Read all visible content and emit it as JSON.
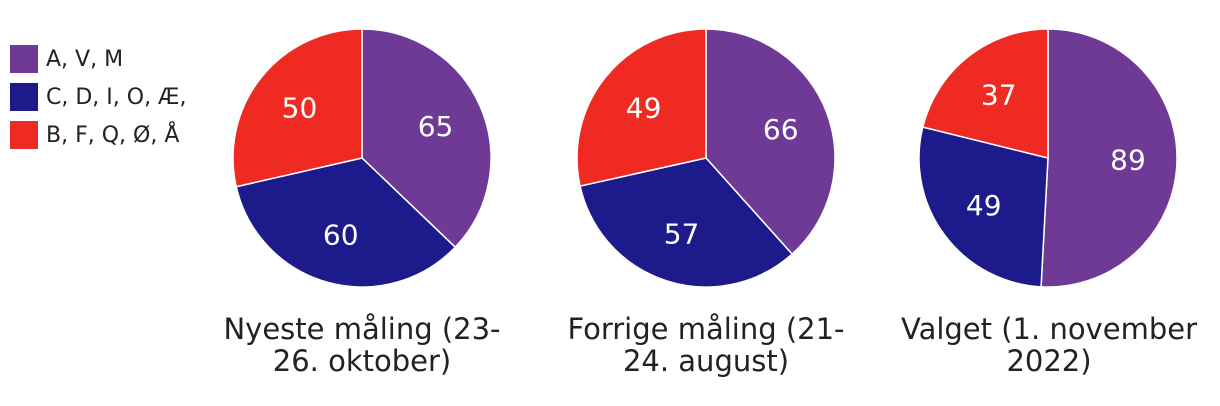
{
  "legend": [
    {
      "label": "A, V, M",
      "color": "#6f3a96"
    },
    {
      "label": "C, D, I, O, Æ,",
      "color": "#1d1a8c"
    },
    {
      "label": "B, F, Q, Ø, Å",
      "color": "#ef2a22"
    }
  ],
  "chart_data": [
    {
      "type": "pie",
      "title_lines": [
        "Nyeste måling (23-",
        "26. oktober)"
      ],
      "categories": [
        "A, V, M",
        "C, D, I, O, Æ,",
        "B, F, Q, Ø, Å"
      ],
      "values": [
        65,
        60,
        50
      ]
    },
    {
      "type": "pie",
      "title_lines": [
        "Forrige måling (21-",
        "24. august)"
      ],
      "categories": [
        "A, V, M",
        "C, D, I, O, Æ,",
        "B, F, Q, Ø, Å"
      ],
      "values": [
        66,
        57,
        49
      ]
    },
    {
      "type": "pie",
      "title_lines": [
        "Valget (1. november",
        "2022)"
      ],
      "categories": [
        "A, V, M",
        "C, D, I, O, Æ,",
        "B, F, Q, Ø, Å"
      ],
      "values": [
        89,
        49,
        37
      ]
    }
  ]
}
